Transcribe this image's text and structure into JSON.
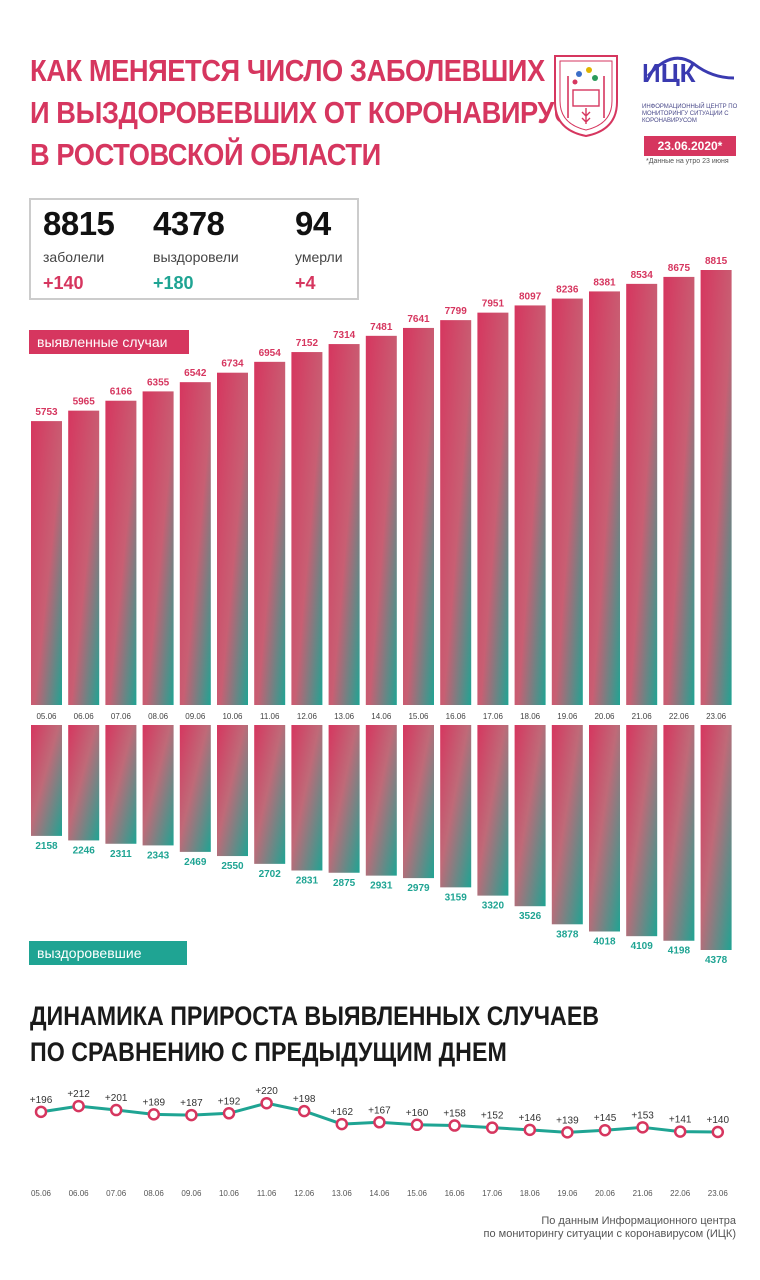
{
  "header": {
    "title_lines": [
      "КАК МЕНЯЕТСЯ ЧИСЛО ЗАБОЛЕВШИХ",
      "И ВЫЗДОРОВЕВШИХ ОТ КОРОНАВИРУСА",
      "В РОСТОВСКОЙ ОБЛАСТИ"
    ],
    "logo_name": "ИЦК",
    "logo_subtitle": "ИНФОРМАЦИОННЫЙ ЦЕНТР ПО МОНИТОРИНГУ СИТУАЦИИ С КОРОНАВИРУСОМ",
    "date": "23.06.2020*",
    "date_note": "*Данные на утро 23 июня",
    "emblem_icon": "rostov-region-coat-of-arms"
  },
  "stats": [
    {
      "value": "8815",
      "label": "заболели",
      "increment": "+140",
      "color": "#d6365f"
    },
    {
      "value": "4378",
      "label": "выздоровели",
      "increment": "+180",
      "color": "#1fa493"
    },
    {
      "value": "94",
      "label": "умерли",
      "increment": "+4",
      "color": "#d6365f"
    }
  ],
  "legend": {
    "cases_label": "выявленные случаи",
    "recovered_label": "выздоровевшие"
  },
  "colors": {
    "accent_red": "#d6365f",
    "accent_green": "#1fa493"
  },
  "chart_data": [
    {
      "type": "bar",
      "categories": [
        "05.06",
        "06.06",
        "07.06",
        "08.06",
        "09.06",
        "10.06",
        "11.06",
        "12.06",
        "13.06",
        "14.06",
        "15.06",
        "16.06",
        "17.06",
        "18.06",
        "19.06",
        "20.06",
        "21.06",
        "22.06",
        "23.06"
      ],
      "series": [
        {
          "name": "выявленные случаи",
          "values": [
            5753,
            5965,
            6166,
            6355,
            6542,
            6734,
            6954,
            7152,
            7314,
            7481,
            7641,
            7799,
            7951,
            8097,
            8236,
            8381,
            8534,
            8675,
            8815
          ]
        },
        {
          "name": "выздоровевшие",
          "values": [
            2158,
            2246,
            2311,
            2343,
            2469,
            2550,
            2702,
            2831,
            2875,
            2931,
            2979,
            3159,
            3320,
            3526,
            3878,
            4018,
            4109,
            4198,
            4378
          ]
        }
      ]
    },
    {
      "type": "line",
      "title_lines": [
        "ДИНАМИКА ПРИРОСТА ВЫЯВЛЕННЫХ СЛУЧАЕВ",
        "ПО СРАВНЕНИЮ С ПРЕДЫДУЩИМ ДНЕМ"
      ],
      "x": [
        "05.06",
        "06.06",
        "07.06",
        "08.06",
        "09.06",
        "10.06",
        "11.06",
        "12.06",
        "13.06",
        "14.06",
        "15.06",
        "16.06",
        "17.06",
        "18.06",
        "19.06",
        "20.06",
        "21.06",
        "22.06",
        "23.06"
      ],
      "values": [
        196,
        212,
        201,
        189,
        187,
        192,
        220,
        198,
        162,
        167,
        160,
        158,
        152,
        146,
        139,
        145,
        153,
        141,
        140
      ],
      "labels": [
        "+196",
        "+212",
        "+201",
        "+189",
        "+187",
        "+192",
        "+220",
        "+198",
        "+162",
        "+167",
        "+160",
        "+158",
        "+152",
        "+146",
        "+139",
        "+145",
        "+153",
        "+141",
        "+140"
      ]
    }
  ],
  "footer": {
    "source_lines": [
      "По данным Информационного центра",
      "по мониторингу ситуации с коронавирусом (ИЦК)"
    ]
  }
}
